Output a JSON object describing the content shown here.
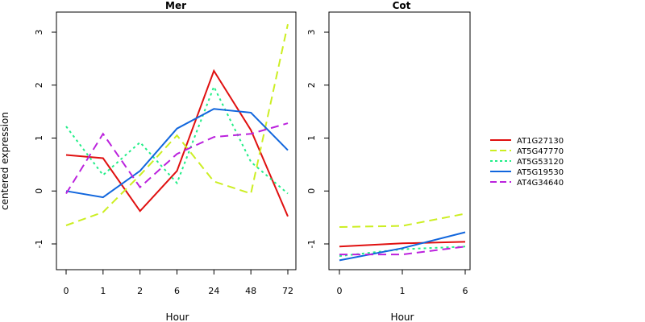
{
  "chart_data": {
    "type": "line",
    "ylabel": "centered expression",
    "ylim": [
      -1.5,
      3.4
    ],
    "yticks": [
      -1,
      0,
      1,
      2,
      3
    ],
    "legend_position": "right",
    "series_styles": [
      {
        "name": "AT1G27130",
        "color": "#e01010",
        "dash": "solid"
      },
      {
        "name": "AT5G47770",
        "color": "#ccee22",
        "dash": "dashed"
      },
      {
        "name": "AT5G53120",
        "color": "#22ee88",
        "dash": "dotted"
      },
      {
        "name": "AT5G19530",
        "color": "#1166dd",
        "dash": "solid"
      },
      {
        "name": "AT4G34640",
        "color": "#bb22dd",
        "dash": "dashed"
      }
    ],
    "panels": [
      {
        "title": "Mer",
        "xlabel": "Hour",
        "categories": [
          "0",
          "1",
          "2",
          "6",
          "24",
          "48",
          "72"
        ],
        "series": [
          {
            "name": "AT1G27130",
            "values": [
              0.68,
              0.62,
              -0.38,
              0.38,
              2.27,
              1.15,
              -0.48
            ]
          },
          {
            "name": "AT5G47770",
            "values": [
              -0.65,
              -0.4,
              0.3,
              1.05,
              0.18,
              -0.05,
              3.15
            ]
          },
          {
            "name": "AT5G53120",
            "values": [
              1.22,
              0.3,
              0.92,
              0.15,
              1.97,
              0.55,
              -0.05
            ]
          },
          {
            "name": "AT5G19530",
            "values": [
              0.0,
              -0.12,
              0.38,
              1.18,
              1.55,
              1.48,
              0.77
            ]
          },
          {
            "name": "AT4G34640",
            "values": [
              -0.05,
              1.08,
              0.07,
              0.7,
              1.02,
              1.08,
              1.28
            ]
          }
        ]
      },
      {
        "title": "Cot",
        "xlabel": "Hour",
        "categories": [
          "0",
          "1",
          "6"
        ],
        "series": [
          {
            "name": "AT1G27130",
            "values": [
              -1.05,
              -0.99,
              -0.96
            ]
          },
          {
            "name": "AT5G47770",
            "values": [
              -0.68,
              -0.66,
              -0.43
            ]
          },
          {
            "name": "AT5G53120",
            "values": [
              -1.23,
              -1.1,
              -1.05
            ]
          },
          {
            "name": "AT5G19530",
            "values": [
              -1.31,
              -1.08,
              -0.78
            ]
          },
          {
            "name": "AT4G34640",
            "values": [
              -1.2,
              -1.2,
              -1.05
            ]
          }
        ]
      }
    ]
  }
}
